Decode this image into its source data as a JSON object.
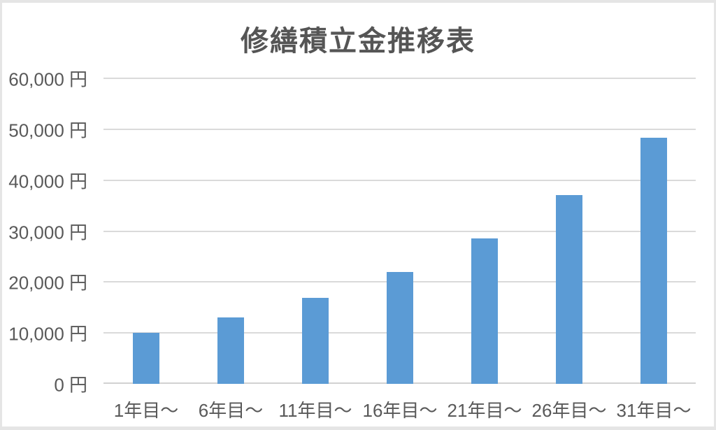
{
  "page": {
    "background_color": "#FFFFFF",
    "border_color": "#E5E5E5"
  },
  "chart_data": {
    "type": "bar",
    "title": "修繕積立金推移表",
    "categories": [
      "1年目〜",
      "6年目〜",
      "11年目〜",
      "16年目〜",
      "21年目〜",
      "26年目〜",
      "31年目〜"
    ],
    "values": [
      10000,
      13000,
      16900,
      21970,
      28561,
      37129,
      48268
    ],
    "xlabel": "",
    "ylabel": "",
    "ylim": [
      0,
      60000
    ],
    "ytick_step": 10000,
    "ytick_labels": [
      "0 円",
      "10,000 円",
      "20,000 円",
      "30,000 円",
      "40,000 円",
      "50,000 円",
      "60,000 円"
    ],
    "grid": true,
    "legend_position": "none",
    "bar_color": "#5B9BD5",
    "gridline_color": "#DADADA",
    "axis_line_color": "#D2D2D2",
    "axis_text_color": "#595959",
    "title_color": "#555555"
  }
}
